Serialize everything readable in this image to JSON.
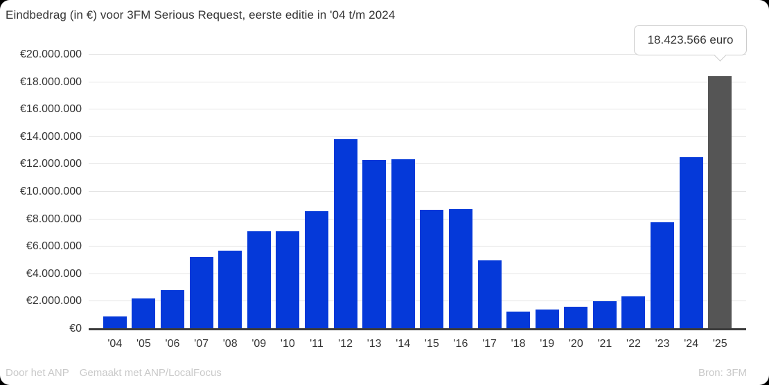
{
  "title": "Eindbedrag (in €) voor 3FM Serious Request, eerste editie in '04 t/m 2024",
  "tooltip": {
    "text": "18.423.566 euro"
  },
  "footer": {
    "byline": "Door het ANP",
    "made_with": "Gemaakt met ANP/LocalFocus",
    "source": "Bron: 3FM"
  },
  "chart_data": {
    "type": "bar",
    "title": "Eindbedrag (in €) voor 3FM Serious Request, eerste editie in '04 t/m 2024",
    "categories": [
      "'04",
      "'05",
      "'06",
      "'07",
      "'08",
      "'09",
      "'10",
      "'11",
      "'12",
      "'13",
      "'14",
      "'15",
      "'16",
      "'17",
      "'18",
      "'19",
      "'20",
      "'21",
      "'22",
      "'23",
      "'24",
      "'25"
    ],
    "values": [
      900000,
      2200000,
      2850000,
      5250000,
      5700000,
      7100000,
      7100000,
      8600000,
      13850000,
      12300000,
      12350000,
      8700000,
      8750000,
      5000000,
      1250000,
      1400000,
      1600000,
      2000000,
      2350000,
      7800000,
      12550000,
      18423566
    ],
    "highlighted_index": 21,
    "highlighted_tooltip": "18.423.566 euro",
    "xlabel": "",
    "ylabel": "",
    "ylim": [
      0,
      20000000
    ],
    "ytick_step": 2000000,
    "ytick_labels": [
      "€0",
      "€2.000.000",
      "€4.000.000",
      "€6.000.000",
      "€8.000.000",
      "€10.000.000",
      "€12.000.000",
      "€14.000.000",
      "€16.000.000",
      "€18.000.000",
      "€20.000.000"
    ],
    "grid": true,
    "legend": false,
    "bar_color": "#0539d9",
    "highlight_color": "#555555",
    "gridline_color": "#e4e4e4",
    "axis_color": "#3b3b3b",
    "text_color": "#333333",
    "footer_color": "#c9c9c9"
  }
}
